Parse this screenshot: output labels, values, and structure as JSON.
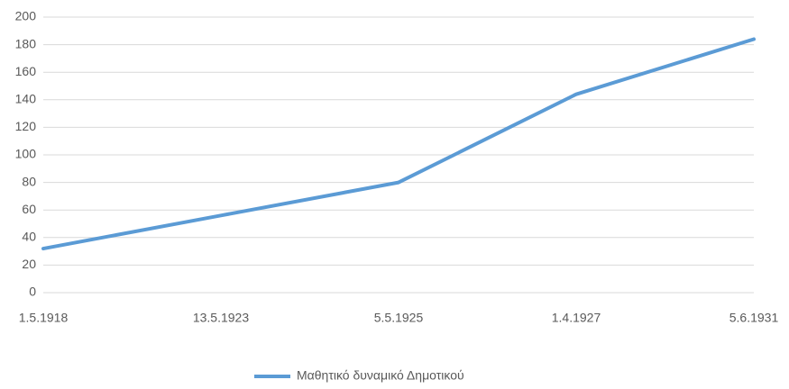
{
  "chart_data": {
    "type": "line",
    "categories": [
      "1.5.1918",
      "13.5.1923",
      "5.5.1925",
      "1.4.1927",
      "5.6.1931"
    ],
    "series": [
      {
        "name": "Μαθητικό δυναμικό Δημοτικού",
        "color": "#5b9bd5",
        "values": [
          32,
          56,
          80,
          144,
          184
        ]
      }
    ],
    "ylim": [
      0,
      200
    ],
    "yticks": [
      0,
      20,
      40,
      60,
      80,
      100,
      120,
      140,
      160,
      180,
      200
    ],
    "grid": true,
    "legend": "bottom"
  }
}
